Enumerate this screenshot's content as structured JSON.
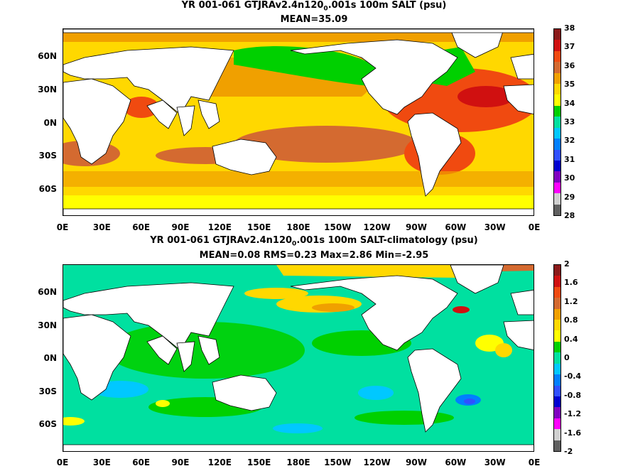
{
  "panels": [
    {
      "title_pre": "YR 001-061 GTJRAv2.4n120",
      "title_sub": "0",
      "title_post": ".001s 100m SALT (psu)",
      "stats": "MEAN=35.09",
      "colorbar_labels": [
        "38",
        "37",
        "36",
        "35",
        "34",
        "33",
        "32",
        "31",
        "30",
        "29",
        "28"
      ],
      "colorbar_colors": [
        "#8b1a1a",
        "#d01010",
        "#f04a10",
        "#d46a30",
        "#f0a000",
        "#ffd800",
        "#ffff00",
        "#00d000",
        "#00e0a0",
        "#00c8ff",
        "#0080ff",
        "#3050ff",
        "#0000d0",
        "#8000c0",
        "#ff00ff",
        "#d0d0d0",
        "#606060"
      ]
    },
    {
      "title_pre": "YR 001-061 GTJRAv2.4n120",
      "title_sub": "0",
      "title_post": ".001s 100m SALT-climatology (psu)",
      "stats": "MEAN=0.08   RMS=0.23   Max=2.86   Min=-2.95",
      "colorbar_labels": [
        "2",
        "1.6",
        "1.2",
        "0.8",
        "0.4",
        "0",
        "-0.4",
        "-0.8",
        "-1.2",
        "-1.6",
        "-2"
      ],
      "colorbar_colors": [
        "#8b1a1a",
        "#d01010",
        "#f04a10",
        "#d46a30",
        "#f0a000",
        "#ffd800",
        "#ffff00",
        "#00d000",
        "#00e0a0",
        "#00c8ff",
        "#0080ff",
        "#3050ff",
        "#0000d0",
        "#8000c0",
        "#ff00ff",
        "#d0d0d0",
        "#606060"
      ]
    }
  ],
  "lat_labels": [
    "60N",
    "30N",
    "0N",
    "30S",
    "60S"
  ],
  "lon_labels": [
    "0E",
    "30E",
    "60E",
    "90E",
    "120E",
    "150E",
    "180E",
    "150W",
    "120W",
    "90W",
    "60W",
    "30W",
    "0E"
  ]
}
